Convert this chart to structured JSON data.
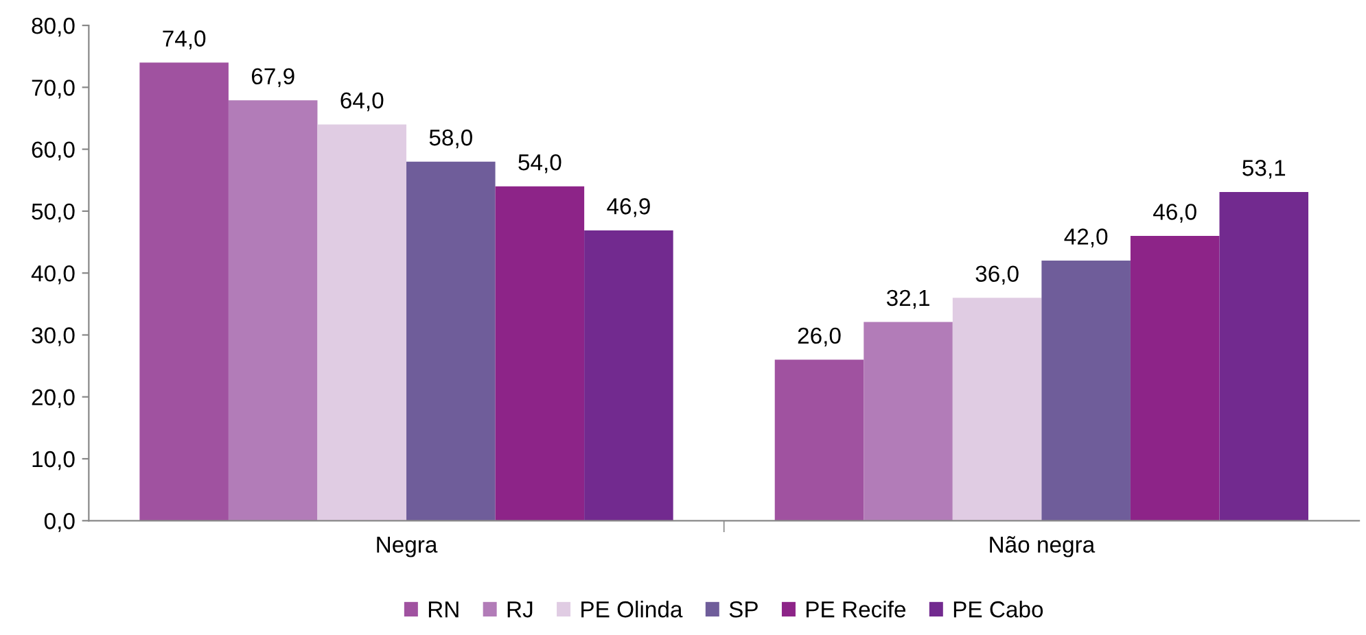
{
  "chart_data": {
    "type": "bar",
    "categories": [
      "Negra",
      "Não negra"
    ],
    "series": [
      {
        "name": "RN",
        "color": "#a052a0",
        "values": [
          74.0,
          26.0
        ],
        "value_labels": [
          "74,0",
          "26,0"
        ]
      },
      {
        "name": "RJ",
        "color": "#b27cb8",
        "values": [
          67.9,
          32.1
        ],
        "value_labels": [
          "67,9",
          "32,1"
        ]
      },
      {
        "name": "PE Olinda",
        "color": "#e0cce3",
        "values": [
          64.0,
          36.0
        ],
        "value_labels": [
          "64,0",
          "36,0"
        ]
      },
      {
        "name": "SP",
        "color": "#6f5d9a",
        "values": [
          58.0,
          42.0
        ],
        "value_labels": [
          "58,0",
          "42,0"
        ]
      },
      {
        "name": "PE Recife",
        "color": "#8d2488",
        "values": [
          54.0,
          46.0
        ],
        "value_labels": [
          "54,0",
          "46,0"
        ]
      },
      {
        "name": "PE Cabo",
        "color": "#722a8f",
        "values": [
          46.9,
          53.1
        ],
        "value_labels": [
          "46,9",
          "53,1"
        ]
      }
    ],
    "ylim": [
      0,
      80
    ],
    "yticks": [
      {
        "value": 0,
        "label": "0,0"
      },
      {
        "value": 10,
        "label": "10,0"
      },
      {
        "value": 20,
        "label": "20,0"
      },
      {
        "value": 30,
        "label": "30,0"
      },
      {
        "value": 40,
        "label": "40,0"
      },
      {
        "value": 50,
        "label": "50,0"
      },
      {
        "value": 60,
        "label": "60,0"
      },
      {
        "value": 70,
        "label": "70,0"
      },
      {
        "value": 80,
        "label": "80,0"
      }
    ],
    "grid": false,
    "legend": "bottom"
  }
}
